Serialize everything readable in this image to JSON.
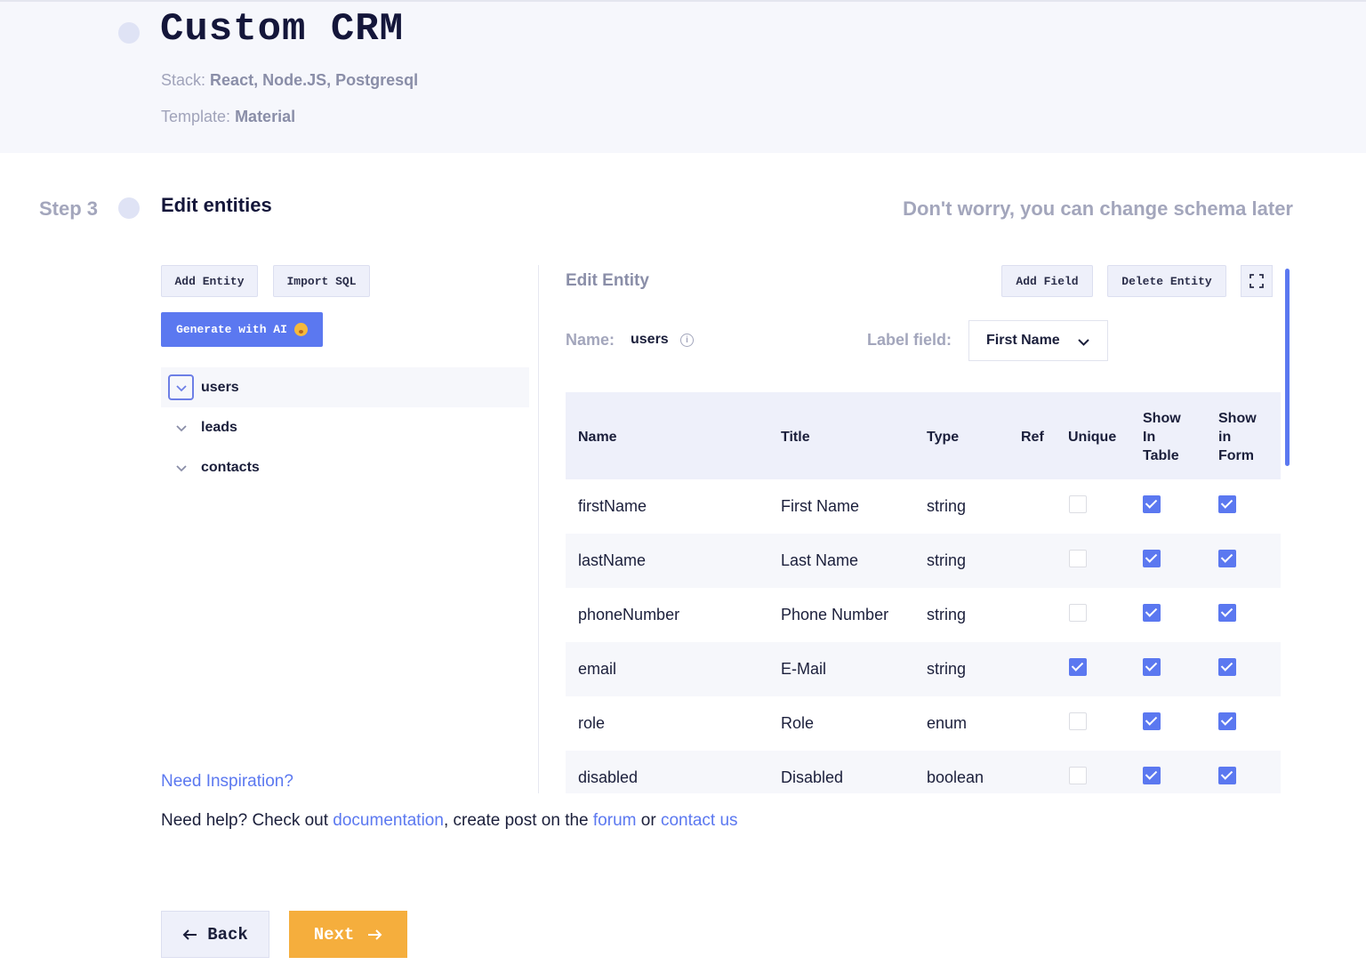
{
  "header": {
    "title": "Custom CRM",
    "stack_label": "Stack:",
    "stack_value": "React, Node.JS, Postgresql",
    "template_label": "Template:",
    "template_value": "Material"
  },
  "step": {
    "label": "Step 3",
    "title": "Edit entities",
    "hint": "Don't worry, you can change schema later"
  },
  "left_panel": {
    "add_entity": "Add Entity",
    "import_sql": "Import SQL",
    "generate_ai": "Generate with AI",
    "entities": [
      {
        "name": "users",
        "active": true
      },
      {
        "name": "leads",
        "active": false
      },
      {
        "name": "contacts",
        "active": false
      }
    ],
    "need_inspiration": "Need Inspiration?"
  },
  "edit_entity": {
    "title": "Edit Entity",
    "add_field": "Add Field",
    "delete_entity": "Delete Entity",
    "name_label": "Name:",
    "name_value": "users",
    "label_field_label": "Label field:",
    "label_field_value": "First Name",
    "columns": {
      "name": "Name",
      "title": "Title",
      "type": "Type",
      "ref": "Ref",
      "unique": "Unique",
      "show_in_table": [
        "Show",
        "In",
        "Table"
      ],
      "show_in_form": [
        "Show",
        "in",
        "Form"
      ]
    },
    "rows": [
      {
        "name": "firstName",
        "title": "First Name",
        "type": "string",
        "unique": false,
        "table": true,
        "form": true
      },
      {
        "name": "lastName",
        "title": "Last Name",
        "type": "string",
        "unique": false,
        "table": true,
        "form": true
      },
      {
        "name": "phoneNumber",
        "title": "Phone Number",
        "type": "string",
        "unique": false,
        "table": true,
        "form": true
      },
      {
        "name": "email",
        "title": "E-Mail",
        "type": "string",
        "unique": true,
        "table": true,
        "form": true
      },
      {
        "name": "role",
        "title": "Role",
        "type": "enum",
        "unique": false,
        "table": true,
        "form": true
      },
      {
        "name": "disabled",
        "title": "Disabled",
        "type": "boolean",
        "unique": false,
        "table": true,
        "form": true
      }
    ]
  },
  "help": {
    "prefix": "Need help? Check out ",
    "documentation": "documentation",
    "middle": ", create post on the ",
    "forum": "forum",
    "or": " or ",
    "contact": "contact us"
  },
  "nav": {
    "back": "Back",
    "next": "Next"
  },
  "colors": {
    "accent": "#5b78f0",
    "next_button": "#f5ae3d"
  }
}
